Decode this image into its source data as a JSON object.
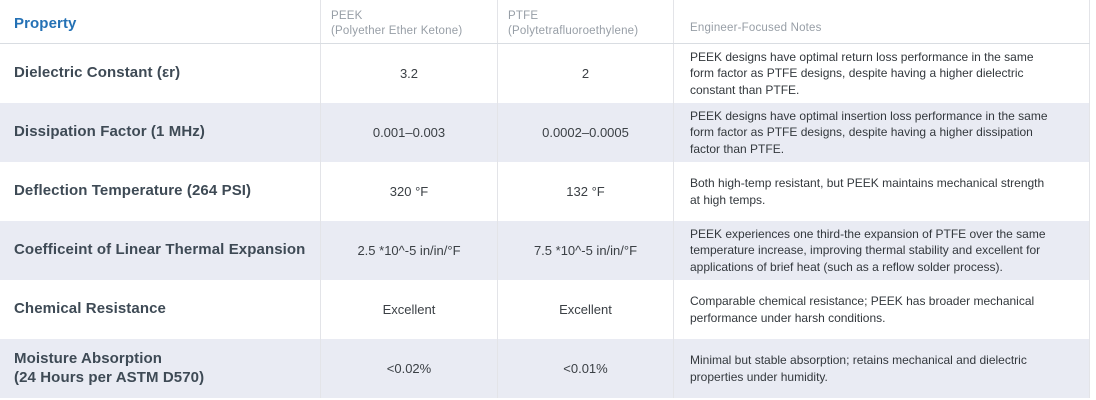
{
  "accent_color": "#2471b5",
  "row_alt_color": "#e9ebf3",
  "table": {
    "columns": [
      {
        "label": "Property"
      },
      {
        "label": "PEEK",
        "sublabel": "(Polyether Ether Ketone)"
      },
      {
        "label": "PTFE",
        "sublabel": "(Polytetrafluoroethylene)"
      },
      {
        "label": "Engineer-Focused Notes"
      }
    ],
    "rows": [
      {
        "property": "Dielectric Constant (εr)",
        "peek": "3.2",
        "ptfe": "2",
        "notes": "PEEK designs have optimal return loss performance in the same form factor as PTFE designs, despite having a higher dielectric constant than PTFE."
      },
      {
        "property": "Dissipation Factor (1 MHz)",
        "peek": "0.001–0.003",
        "ptfe": "0.0002–0.0005",
        "notes": "PEEK designs have optimal insertion loss performance in the same form factor as PTFE designs, despite having a higher dissipation factor than PTFE."
      },
      {
        "property": "Deflection Temperature (264 PSI)",
        "peek": "320 °F",
        "ptfe": "132 °F",
        "notes": "Both high-temp resistant, but PEEK maintains mechanical strength at high temps."
      },
      {
        "property": "Coefficeint of Linear Thermal Expansion",
        "peek": "2.5 *10^-5 in/in/°F",
        "ptfe": "7.5 *10^-5 in/in/°F",
        "notes": "PEEK experiences one third-the expansion of PTFE over the same temperature increase, improving thermal stability and excellent for applications of brief heat (such as a reflow solder process)."
      },
      {
        "property": "Chemical Resistance",
        "peek": "Excellent",
        "ptfe": "Excellent",
        "notes": "Comparable chemical resistance; PEEK has broader mechanical performance under harsh conditions."
      },
      {
        "property": "Moisture Absorption\n(24 Hours per ASTM D570)",
        "peek": "<0.02%",
        "ptfe": "<0.01%",
        "notes": "Minimal but stable absorption; retains mechanical and dielectric properties under humidity."
      }
    ]
  }
}
